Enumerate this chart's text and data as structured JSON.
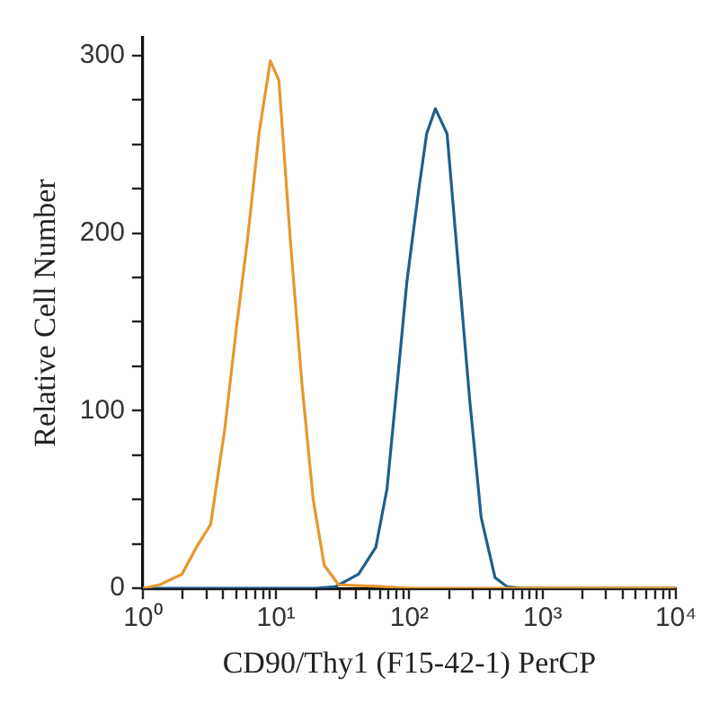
{
  "chart_data": {
    "type": "line",
    "xlabel": "CD90/Thy1 (F15-42-1) PerCP",
    "ylabel": "Relative Cell Number",
    "log": "x",
    "xlim": [
      1,
      10000
    ],
    "ylim": [
      0,
      310
    ],
    "xticks": [
      {
        "value": 1,
        "label": "10⁰"
      },
      {
        "value": 2,
        "label": null
      },
      {
        "value": 3,
        "label": null
      },
      {
        "value": 4,
        "label": null
      },
      {
        "value": 5,
        "label": null
      },
      {
        "value": 6,
        "label": null
      },
      {
        "value": 7,
        "label": null
      },
      {
        "value": 8,
        "label": null
      },
      {
        "value": 9,
        "label": null
      },
      {
        "value": 10,
        "label": "10¹"
      },
      {
        "value": 20,
        "label": null
      },
      {
        "value": 30,
        "label": null
      },
      {
        "value": 40,
        "label": null
      },
      {
        "value": 50,
        "label": null
      },
      {
        "value": 60,
        "label": null
      },
      {
        "value": 70,
        "label": null
      },
      {
        "value": 80,
        "label": null
      },
      {
        "value": 90,
        "label": null
      },
      {
        "value": 100,
        "label": "10²"
      },
      {
        "value": 200,
        "label": null
      },
      {
        "value": 300,
        "label": null
      },
      {
        "value": 400,
        "label": null
      },
      {
        "value": 500,
        "label": null
      },
      {
        "value": 600,
        "label": null
      },
      {
        "value": 700,
        "label": null
      },
      {
        "value": 800,
        "label": null
      },
      {
        "value": 900,
        "label": null
      },
      {
        "value": 1000,
        "label": "10³"
      },
      {
        "value": 2000,
        "label": null
      },
      {
        "value": 3000,
        "label": null
      },
      {
        "value": 4000,
        "label": null
      },
      {
        "value": 5000,
        "label": null
      },
      {
        "value": 6000,
        "label": null
      },
      {
        "value": 7000,
        "label": null
      },
      {
        "value": 8000,
        "label": null
      },
      {
        "value": 9000,
        "label": null
      },
      {
        "value": 10000,
        "label": "10⁴"
      }
    ],
    "yticks": [
      0,
      {
        "value": 25,
        "label": null
      },
      {
        "value": 50,
        "label": null
      },
      {
        "value": 75,
        "label": null
      },
      100,
      {
        "value": 125,
        "label": null
      },
      {
        "value": 150,
        "label": null
      },
      {
        "value": 175,
        "label": null
      },
      200,
      {
        "value": 225,
        "label": null
      },
      {
        "value": 250,
        "label": null
      },
      {
        "value": 275,
        "label": null
      },
      300
    ],
    "series": [
      {
        "color": "#e8962e",
        "x": [
          1,
          1.34,
          1.97,
          2.52,
          3.23,
          4.13,
          5.03,
          6.1,
          7.45,
          9.06,
          10.5,
          12.8,
          15.6,
          19,
          23,
          29.5,
          62,
          100,
          10000
        ],
        "values": [
          0,
          2,
          8,
          23,
          36,
          90,
          146,
          196,
          256,
          297,
          286,
          196,
          116,
          50,
          13,
          2,
          1,
          0,
          0
        ]
      },
      {
        "color": "#1f5f8b",
        "x": [
          1,
          20,
          28,
          41.6,
          56,
          68,
          83,
          96,
          117,
          135,
          157,
          192,
          234,
          284,
          346,
          440,
          540,
          700,
          10000
        ],
        "values": [
          0,
          0,
          1,
          8,
          23,
          56,
          123,
          173,
          223,
          256,
          270,
          256,
          180,
          106,
          40,
          6,
          1,
          0,
          0
        ]
      }
    ]
  }
}
